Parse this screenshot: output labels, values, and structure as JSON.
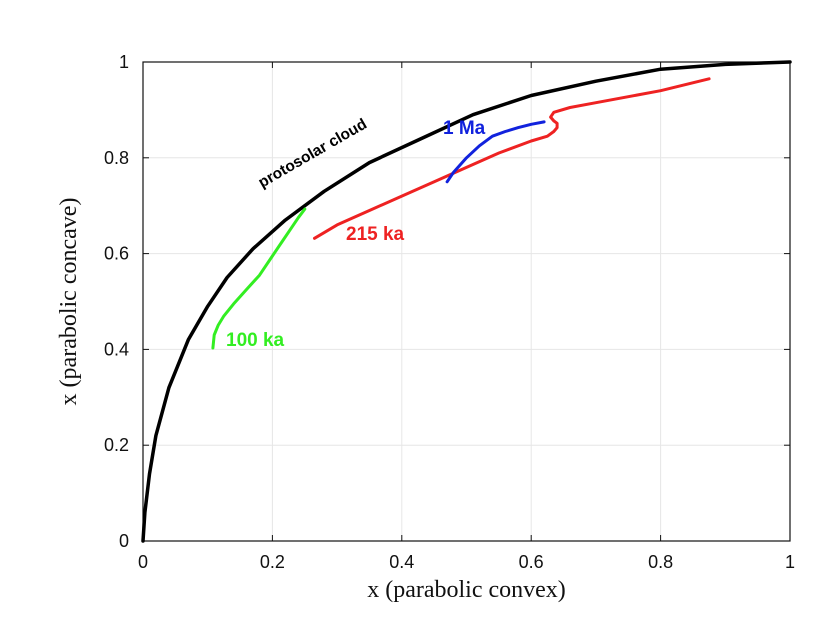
{
  "chart_data": {
    "type": "line",
    "title": "",
    "xlabel": "x (parabolic convex)",
    "ylabel": "x (parabolic concave)",
    "xlim": [
      0,
      1
    ],
    "ylim": [
      0,
      1
    ],
    "grid": true,
    "x_ticks": [
      0,
      0.2,
      0.4,
      0.6,
      0.8,
      1
    ],
    "y_ticks": [
      0,
      0.2,
      0.4,
      0.6,
      0.8,
      1
    ],
    "x_tick_labels": [
      "0",
      "0.2",
      "0.4",
      "0.6",
      "0.8",
      "1"
    ],
    "y_tick_labels": [
      "0",
      "0.2",
      "0.4",
      "0.6",
      "0.8",
      "1"
    ],
    "series": [
      {
        "name": "protosolar cloud",
        "label": "protosolar cloud",
        "color": "#000000",
        "x": [
          0,
          0.003,
          0.01,
          0.02,
          0.04,
          0.07,
          0.1,
          0.13,
          0.17,
          0.22,
          0.28,
          0.35,
          0.43,
          0.51,
          0.6,
          0.7,
          0.8,
          0.9,
          1.0
        ],
        "y": [
          0,
          0.06,
          0.14,
          0.22,
          0.32,
          0.42,
          0.49,
          0.55,
          0.61,
          0.67,
          0.73,
          0.79,
          0.84,
          0.89,
          0.93,
          0.96,
          0.985,
          0.995,
          1.0
        ]
      },
      {
        "name": "100 ka",
        "label": "100 ka",
        "color": "#33ee22",
        "x": [
          0.108,
          0.11,
          0.116,
          0.125,
          0.14,
          0.16,
          0.18,
          0.2,
          0.215,
          0.23,
          0.24,
          0.25
        ],
        "y": [
          0.403,
          0.43,
          0.45,
          0.47,
          0.495,
          0.525,
          0.555,
          0.595,
          0.625,
          0.655,
          0.675,
          0.693
        ]
      },
      {
        "name": "215 ka",
        "label": "215 ka",
        "color": "#ee2222",
        "x": [
          0.265,
          0.3,
          0.35,
          0.4,
          0.45,
          0.5,
          0.55,
          0.6,
          0.625,
          0.635,
          0.64,
          0.64,
          0.635,
          0.63,
          0.635,
          0.66,
          0.7,
          0.8,
          0.875
        ],
        "y": [
          0.632,
          0.66,
          0.69,
          0.72,
          0.75,
          0.78,
          0.81,
          0.835,
          0.845,
          0.855,
          0.863,
          0.872,
          0.877,
          0.885,
          0.895,
          0.905,
          0.915,
          0.94,
          0.965
        ]
      },
      {
        "name": "1 Ma",
        "label": "1 Ma",
        "color": "#1122dd",
        "x": [
          0.47,
          0.48,
          0.5,
          0.52,
          0.54,
          0.56,
          0.58,
          0.6,
          0.62
        ],
        "y": [
          0.75,
          0.77,
          0.8,
          0.825,
          0.845,
          0.855,
          0.863,
          0.87,
          0.875
        ]
      }
    ]
  }
}
